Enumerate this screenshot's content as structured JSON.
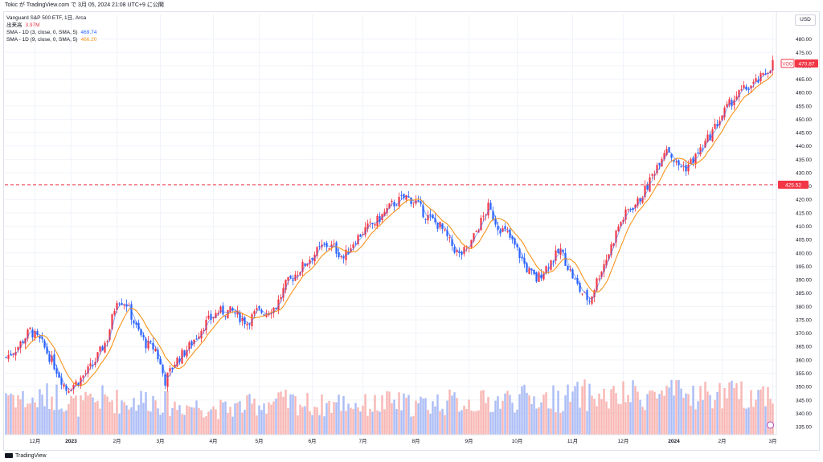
{
  "header": {
    "published": "Tokic が TradingView.com で 3月 05, 2024 21:08 UTC+9 に公開"
  },
  "legend": {
    "symbol": "Vanguard S&P 500 ETF, 1日, Arca",
    "volume_label": "出来高",
    "volume_value": "3.97M",
    "sma1_label": "SMA - 1D (3, close, 0, SMA, 5)",
    "sma1_value": "469.74",
    "sma2_label": "SMA - 1D (9, close, 0, SMA, 5)",
    "sma2_value": "466.20"
  },
  "currency": "USD",
  "footer": {
    "brand": "TradingView"
  },
  "colors": {
    "up": "#f23645",
    "down": "#2962ff",
    "sma_fast": "#2962ff",
    "sma_slow": "#f7931a",
    "hline": "#f23645"
  },
  "chart_data": {
    "type": "candlestick",
    "y_axis": {
      "min": 332,
      "max": 485,
      "ticks": [
        335,
        340,
        345,
        350,
        355,
        360,
        365,
        370,
        375,
        380,
        385,
        390,
        395,
        400,
        405,
        410,
        415,
        420,
        425,
        430,
        435,
        440,
        445,
        450,
        455,
        460,
        465,
        470,
        475,
        480
      ]
    },
    "x_axis_labels": [
      "12月",
      "2023",
      "2月",
      "3月",
      "4月",
      "5月",
      "6月",
      "7月",
      "8月",
      "9月",
      "10月",
      "11月",
      "12月",
      "2024",
      "2月",
      "3月"
    ],
    "x_axis_label_positions": [
      12,
      27,
      46,
      64,
      86,
      105,
      127,
      148,
      170,
      192,
      212,
      235,
      256,
      277,
      297,
      318
    ],
    "price_anchors": [
      [
        0,
        361
      ],
      [
        5,
        365
      ],
      [
        10,
        371
      ],
      [
        15,
        366
      ],
      [
        20,
        358
      ],
      [
        25,
        349
      ],
      [
        30,
        352
      ],
      [
        36,
        358
      ],
      [
        42,
        368
      ],
      [
        46,
        383
      ],
      [
        50,
        381
      ],
      [
        54,
        372
      ],
      [
        58,
        366
      ],
      [
        62,
        364
      ],
      [
        64,
        358
      ],
      [
        66,
        352
      ],
      [
        70,
        359
      ],
      [
        76,
        365
      ],
      [
        82,
        373
      ],
      [
        88,
        378
      ],
      [
        94,
        378
      ],
      [
        100,
        374
      ],
      [
        104,
        378
      ],
      [
        108,
        378
      ],
      [
        112,
        380
      ],
      [
        116,
        388
      ],
      [
        120,
        392
      ],
      [
        126,
        398
      ],
      [
        132,
        403
      ],
      [
        136,
        402
      ],
      [
        140,
        398
      ],
      [
        144,
        404
      ],
      [
        148,
        408
      ],
      [
        154,
        412
      ],
      [
        160,
        418
      ],
      [
        166,
        421
      ],
      [
        170,
        419
      ],
      [
        174,
        414
      ],
      [
        180,
        410
      ],
      [
        184,
        404
      ],
      [
        188,
        399
      ],
      [
        192,
        402
      ],
      [
        196,
        410
      ],
      [
        200,
        417
      ],
      [
        204,
        410
      ],
      [
        208,
        407
      ],
      [
        212,
        401
      ],
      [
        216,
        394
      ],
      [
        220,
        390
      ],
      [
        226,
        397
      ],
      [
        230,
        401
      ],
      [
        234,
        393
      ],
      [
        238,
        386
      ],
      [
        242,
        382
      ],
      [
        246,
        392
      ],
      [
        250,
        400
      ],
      [
        254,
        410
      ],
      [
        258,
        416
      ],
      [
        262,
        419
      ],
      [
        266,
        425
      ],
      [
        270,
        433
      ],
      [
        274,
        440
      ],
      [
        278,
        433
      ],
      [
        282,
        432
      ],
      [
        286,
        436
      ],
      [
        290,
        441
      ],
      [
        294,
        447
      ],
      [
        298,
        453
      ],
      [
        302,
        458
      ],
      [
        306,
        461
      ],
      [
        310,
        463
      ],
      [
        314,
        466
      ],
      [
        318,
        471
      ]
    ],
    "volume_anchors": [
      [
        0,
        0.6
      ],
      [
        10,
        0.45
      ],
      [
        20,
        0.55
      ],
      [
        30,
        0.4
      ],
      [
        40,
        0.5
      ],
      [
        50,
        0.45
      ],
      [
        60,
        0.5
      ],
      [
        70,
        0.4
      ],
      [
        80,
        0.4
      ],
      [
        90,
        0.35
      ],
      [
        100,
        0.4
      ],
      [
        110,
        0.45
      ],
      [
        120,
        0.45
      ],
      [
        130,
        0.4
      ],
      [
        140,
        0.45
      ],
      [
        150,
        0.4
      ],
      [
        160,
        0.45
      ],
      [
        170,
        0.4
      ],
      [
        180,
        0.45
      ],
      [
        190,
        0.45
      ],
      [
        200,
        0.45
      ],
      [
        210,
        0.5
      ],
      [
        220,
        0.5
      ],
      [
        230,
        0.5
      ],
      [
        240,
        0.55
      ],
      [
        250,
        0.5
      ],
      [
        260,
        0.55
      ],
      [
        270,
        0.55
      ],
      [
        280,
        0.55
      ],
      [
        290,
        0.55
      ],
      [
        300,
        0.55
      ],
      [
        310,
        0.55
      ],
      [
        318,
        0.6
      ]
    ],
    "sma_fast_period": 3,
    "sma_slow_period": 9,
    "last_price": 470.87,
    "last_label": "VOO",
    "horizontal_line": 425.52,
    "price_labels": {
      "last": "470.87",
      "hline": "425.52"
    }
  }
}
